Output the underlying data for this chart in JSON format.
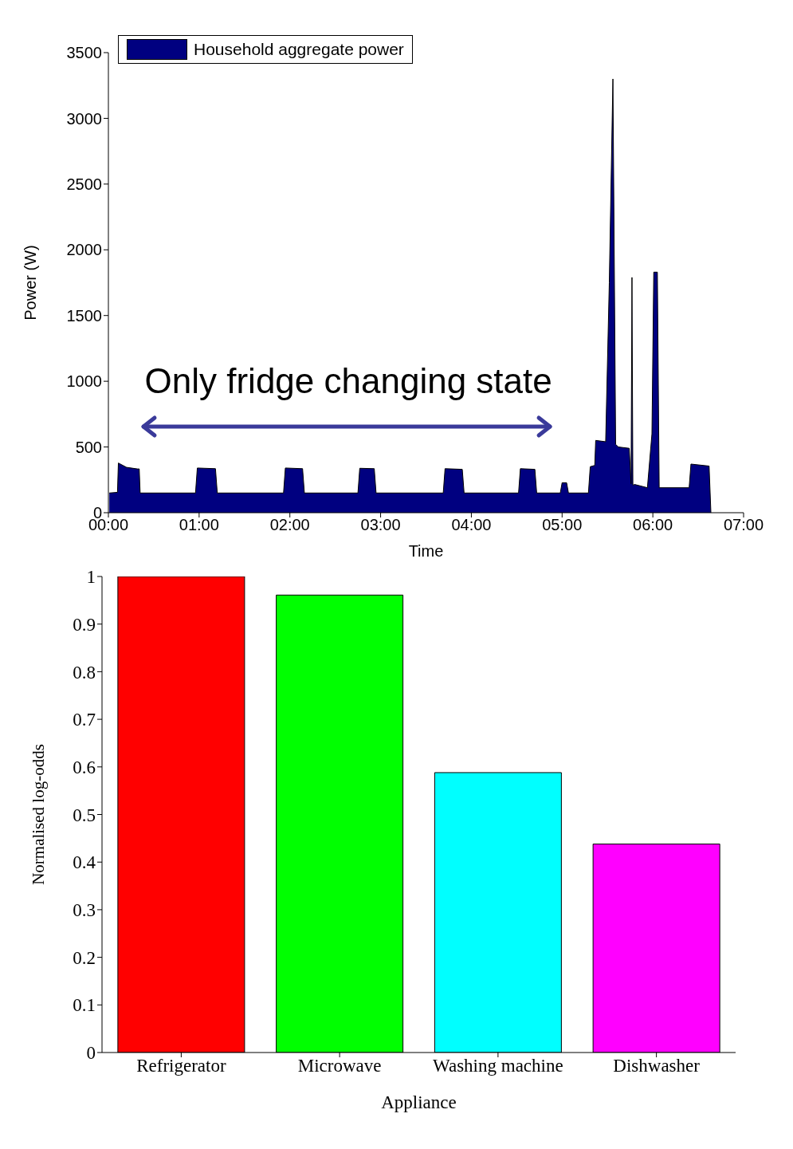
{
  "chart_data": [
    {
      "type": "area",
      "xlabel": "Time",
      "ylabel": "Power (W)",
      "legend": "top left",
      "grid": false,
      "annotations": [
        "Only fridge changing state"
      ],
      "xlim": [
        0,
        7
      ],
      "xticks": [
        {
          "value": 0,
          "label": "00:00"
        },
        {
          "value": 1,
          "label": "01:00"
        },
        {
          "value": 2,
          "label": "02:00"
        },
        {
          "value": 3,
          "label": "03:00"
        },
        {
          "value": 4,
          "label": "04:00"
        },
        {
          "value": 5,
          "label": "05:00"
        },
        {
          "value": 6,
          "label": "06:00"
        },
        {
          "value": 7,
          "label": "07:00"
        }
      ],
      "ylim": [
        0,
        3500
      ],
      "yticks": [
        0,
        500,
        1000,
        1500,
        2000,
        2500,
        3000,
        3500
      ],
      "series": [
        {
          "name": "Household aggregate power",
          "color": "#000080",
          "x": [
            0.01,
            0.1,
            0.11,
            0.2,
            0.32,
            0.34,
            0.35,
            0.96,
            0.98,
            1.18,
            1.2,
            1.93,
            1.95,
            2.14,
            2.16,
            2.75,
            2.77,
            2.93,
            2.95,
            3.69,
            3.71,
            3.9,
            3.92,
            4.52,
            4.54,
            4.7,
            4.72,
            4.98,
            5.0,
            5.05,
            5.07,
            5.29,
            5.31,
            5.36,
            5.37,
            5.48,
            5.52,
            5.56,
            5.59,
            5.62,
            5.74,
            5.76,
            5.77,
            5.78,
            5.8,
            5.94,
            5.99,
            6.01,
            6.05,
            6.07,
            6.4,
            6.42,
            6.62,
            6.64
          ],
          "values": [
            150,
            155,
            378,
            345,
            333,
            333,
            150,
            150,
            340,
            335,
            150,
            150,
            340,
            335,
            150,
            150,
            338,
            335,
            150,
            150,
            335,
            330,
            150,
            150,
            335,
            330,
            150,
            150,
            228,
            228,
            150,
            150,
            350,
            360,
            550,
            540,
            1750,
            3300,
            520,
            500,
            490,
            220,
            1790,
            210,
            215,
            190,
            600,
            1830,
            1830,
            190,
            190,
            370,
            355,
            0
          ]
        }
      ]
    },
    {
      "type": "bar",
      "xlabel": "Appliance",
      "ylabel": "Normalised log-odds",
      "grid": false,
      "categories": [
        "Refrigerator",
        "Microwave",
        "Washing machine",
        "Dishwasher"
      ],
      "values": [
        1,
        0.961,
        0.588,
        0.438
      ],
      "colors": [
        "#ff0000",
        "#00ff00",
        "#00ffff",
        "#ff00ff"
      ],
      "ylim": [
        0,
        1
      ],
      "yticks": [
        0,
        0.1,
        0.2,
        0.3,
        0.4,
        0.5,
        0.6,
        0.7,
        0.8,
        0.9,
        1
      ]
    }
  ]
}
